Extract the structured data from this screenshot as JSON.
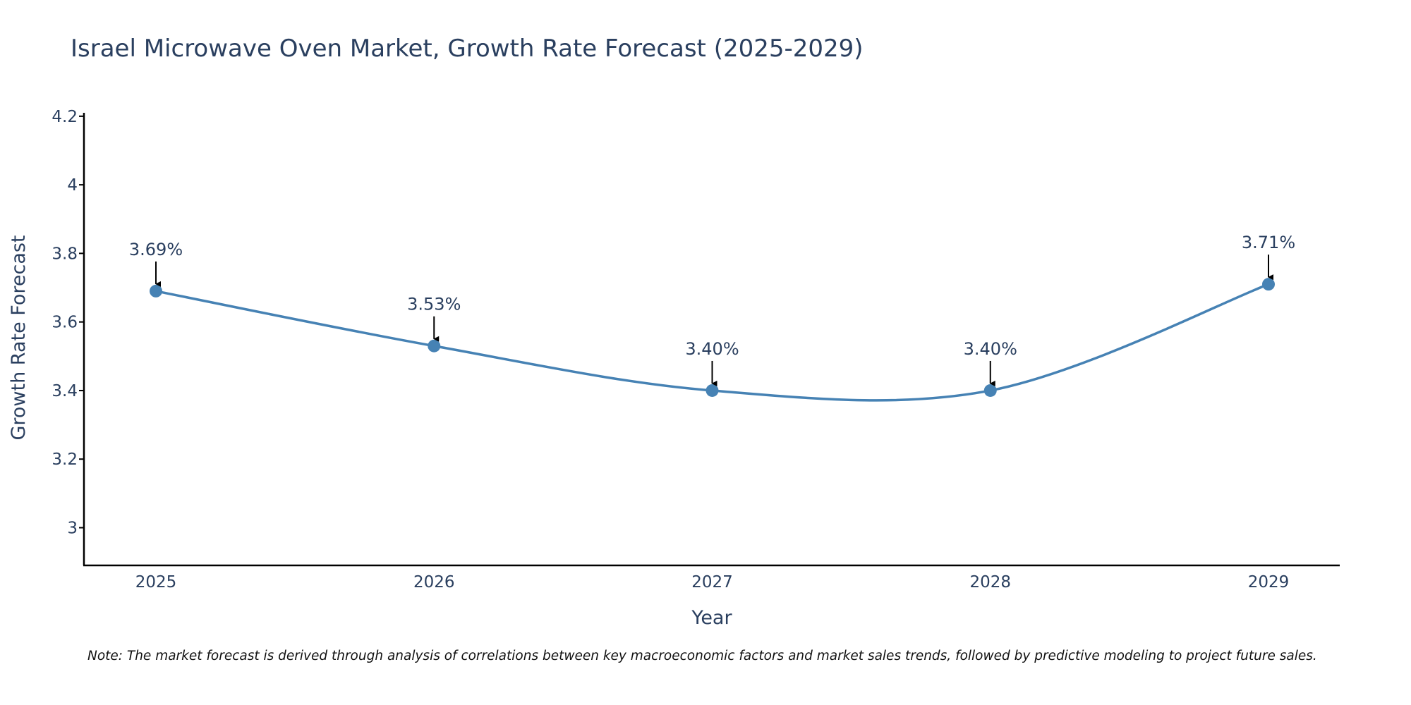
{
  "chart_data": {
    "type": "line",
    "title": "Israel Microwave Oven Market, Growth Rate Forecast (2025-2029)",
    "xlabel": "Year",
    "ylabel": "Growth Rate Forecast",
    "categories": [
      "2025",
      "2026",
      "2027",
      "2028",
      "2029"
    ],
    "series": [
      {
        "name": "Growth Rate Forecast",
        "values": [
          3.69,
          3.53,
          3.4,
          3.4,
          3.71
        ]
      }
    ],
    "data_labels": [
      "3.69%",
      "3.53%",
      "3.40%",
      "3.40%",
      "3.71%"
    ],
    "y_ticks": [
      3,
      3.2,
      3.4,
      3.6,
      3.8,
      4,
      4.2
    ],
    "y_tick_labels": [
      "3",
      "3.2",
      "3.4",
      "3.6",
      "3.8",
      "4",
      "4.2"
    ],
    "ylim": [
      2.89,
      4.21
    ],
    "grid": false,
    "line_color": "#4682b4",
    "marker_color": "#4682b4"
  },
  "note": "Note: The market forecast is derived through analysis of correlations between key macroeconomic factors and market sales trends, followed by predictive modeling to project future sales."
}
